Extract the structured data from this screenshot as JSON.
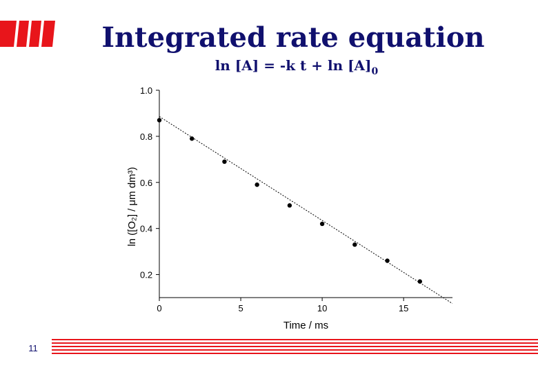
{
  "header": {
    "title": "Integrated rate equation",
    "subtitle": "ln [A] = -k t + ln [A]",
    "subtitle_subscript": "0"
  },
  "page_number": "11",
  "chart_data": {
    "type": "scatter",
    "x_label": "Time / ms",
    "y_label": "ln ([O₂] / μm dm³)",
    "x": [
      0,
      2,
      4,
      6,
      8,
      10,
      12,
      14,
      16
    ],
    "series": [
      {
        "color": "#000000",
        "values": [
          0.87,
          0.79,
          0.69,
          0.59,
          0.5,
          0.42,
          0.33,
          0.26,
          0.17
        ]
      }
    ],
    "fit": {
      "x": [
        0,
        18
      ],
      "values": [
        0.886,
        0.074
      ],
      "color": "#000000",
      "dashed": true
    },
    "xlim": [
      0,
      18
    ],
    "ylim": [
      0.1,
      1.0
    ],
    "xticks": [
      0,
      5,
      10,
      15
    ],
    "yticks": [
      0.2,
      0.4,
      0.6,
      0.8,
      {
        "value": 1.0,
        "label": "1.0"
      }
    ],
    "grid": false
  }
}
